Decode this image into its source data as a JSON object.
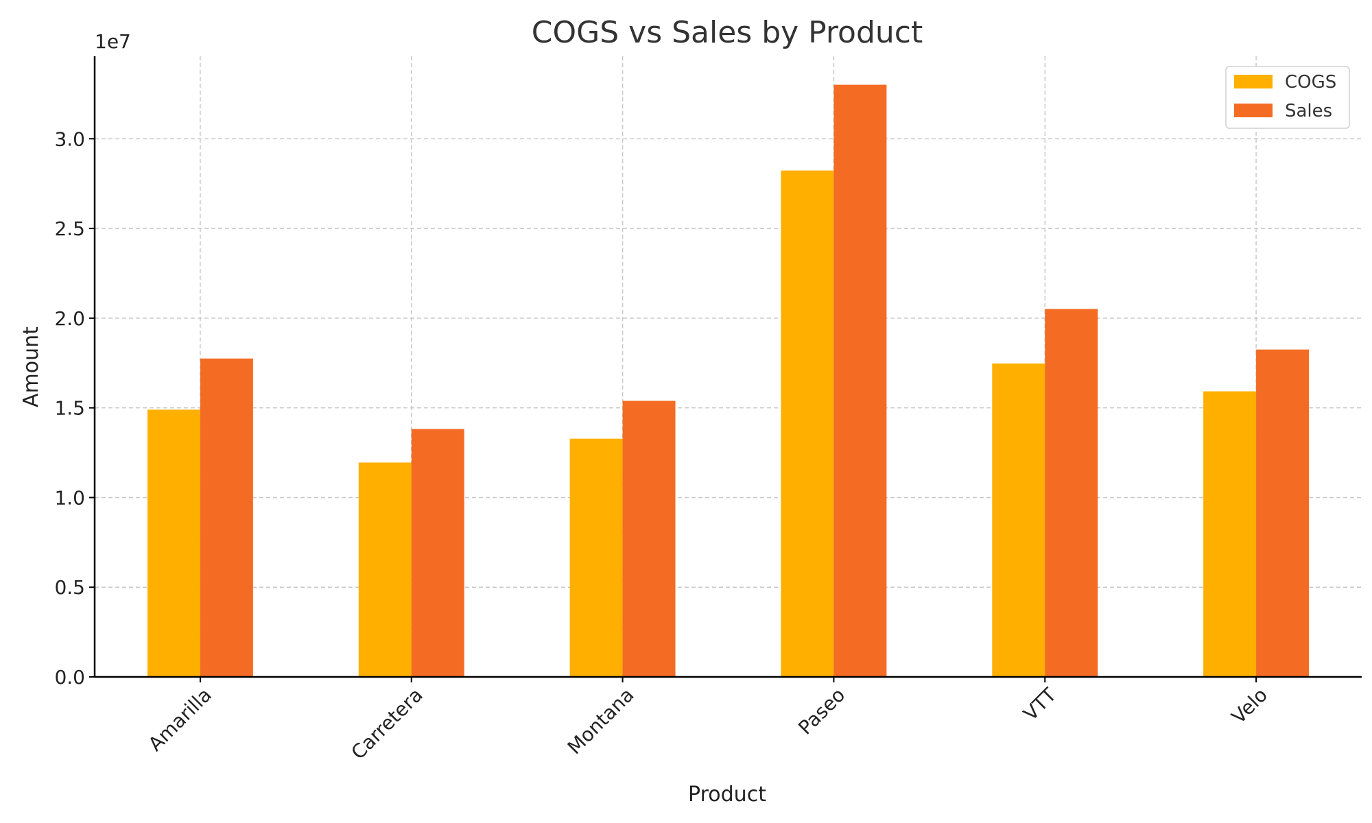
{
  "chart_data": {
    "type": "bar",
    "title": "COGS vs Sales by Product",
    "xlabel": "Product",
    "ylabel": "Amount",
    "y_offset_label": "1e7",
    "categories": [
      "Amarilla",
      "Carretera",
      "Montana",
      "Paseo",
      "VTT",
      "Velo"
    ],
    "series": [
      {
        "name": "COGS",
        "color": "#FFAF00",
        "values": [
          14900000,
          11950000,
          13280000,
          28230000,
          17470000,
          15920000
        ]
      },
      {
        "name": "Sales",
        "color": "#F46B23",
        "values": [
          17750000,
          13820000,
          15390000,
          33010000,
          20510000,
          18250000
        ]
      }
    ],
    "ylim": [
      0,
      34600000
    ],
    "yticks": [
      0,
      5000000,
      10000000,
      15000000,
      20000000,
      25000000,
      30000000
    ],
    "ytick_labels": [
      "0.0",
      "0.5",
      "1.0",
      "1.5",
      "2.0",
      "2.5",
      "3.0"
    ],
    "grid": true,
    "legend_position": "top-right"
  }
}
